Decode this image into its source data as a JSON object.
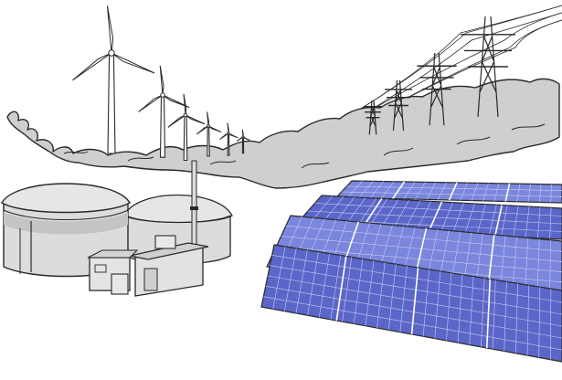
{
  "colors": {
    "outline": "#2a2a2a",
    "trees": "#cfcfcf",
    "trees_dark": "#b8b8b8",
    "tank": "#dcdcdc",
    "tank_shade": "#c4c4c4",
    "building": "#e2e2e2",
    "panel": "#5b66c9",
    "panel_light": "#7b86dd",
    "panel_grid": "#c7cdf3",
    "ground": "#ffffff"
  },
  "icons": [
    "wind-turbine-icon",
    "power-pylon-icon",
    "tree-line-icon",
    "biogas-tank-icon",
    "biogas-control-building-icon",
    "chimney-icon",
    "solar-panel-array-icon"
  ]
}
